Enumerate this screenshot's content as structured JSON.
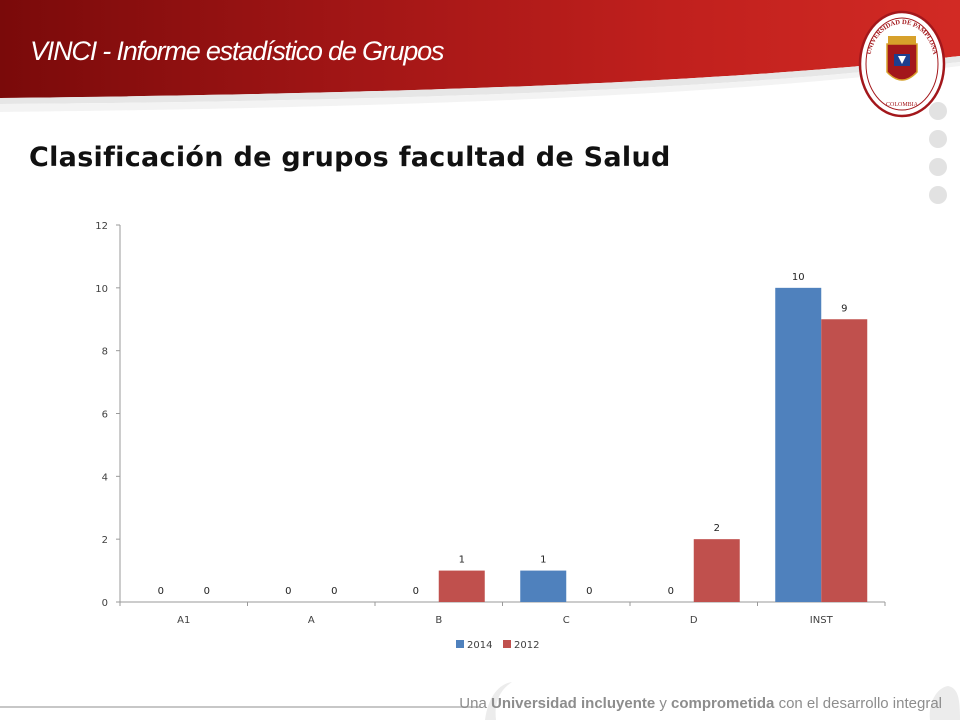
{
  "header": {
    "title": "VINCI - Informe estadístico de Grupos",
    "colors": {
      "dark_red": "#8e0e0e",
      "red": "#c2211f"
    },
    "seal": {
      "top_text": "UNIVERSIDAD DE PAMPLONA",
      "bottom_text": "COLOMBIA",
      "icon": "university-seal"
    }
  },
  "slide": {
    "title": "Clasificación de grupos facultad de Salud"
  },
  "footer": {
    "parts": [
      "Una ",
      "Universidad incluyente",
      " y ",
      "comprometida",
      " con el desarrollo integral"
    ]
  },
  "chart_data": {
    "type": "bar",
    "categories": [
      "A1",
      "A",
      "B",
      "C",
      "D",
      "INST"
    ],
    "series": [
      {
        "name": "2014",
        "values": [
          0,
          0,
          null,
          1,
          0,
          10
        ],
        "color": "#4f81bd"
      },
      {
        "name": "2012",
        "values": [
          0,
          0,
          1,
          0,
          2,
          9
        ],
        "color": "#c0504d"
      }
    ],
    "data_labels": {
      "2014": [
        "0",
        "0",
        "0",
        "1",
        "0",
        "10"
      ],
      "2012": [
        "0",
        "0",
        "1",
        "0",
        "2",
        "9"
      ]
    },
    "ylim": [
      0,
      12
    ],
    "yticks": [
      0,
      2,
      4,
      6,
      8,
      10,
      12
    ],
    "grid": false,
    "legend": "bottom"
  }
}
